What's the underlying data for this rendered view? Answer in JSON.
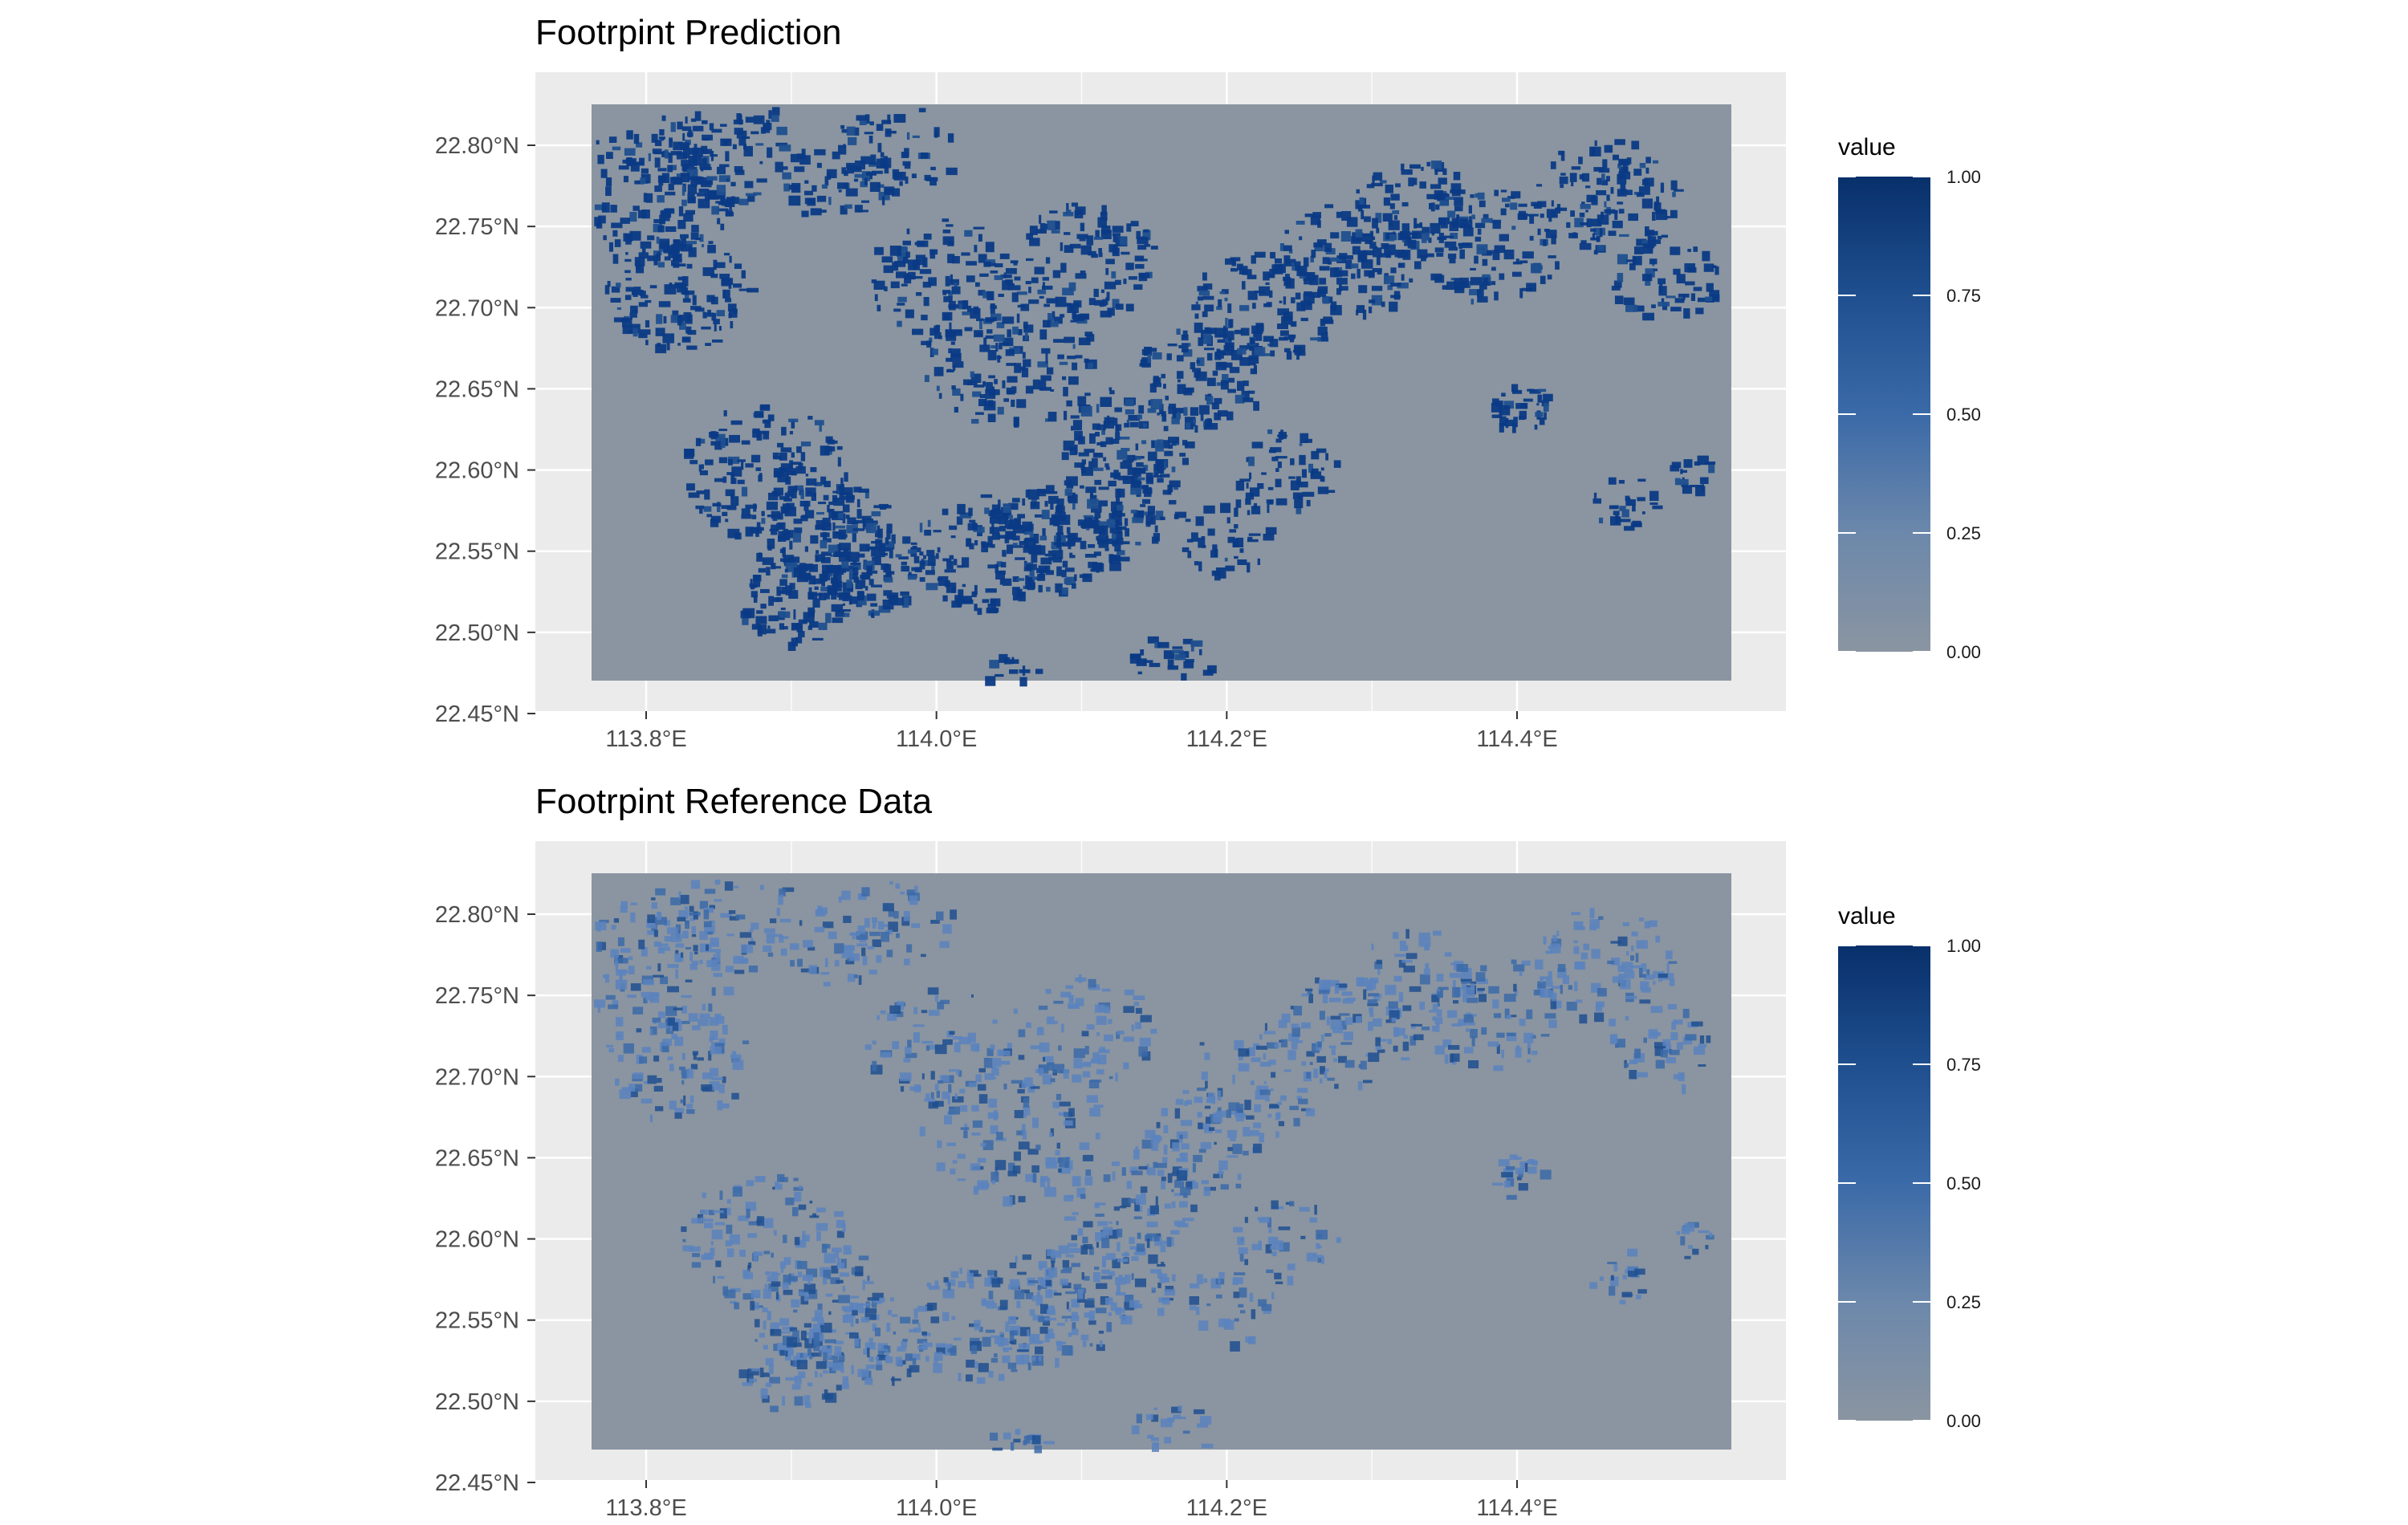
{
  "colors": {
    "panel_bg": "#ebebeb",
    "grid": "#ffffff",
    "raster_bg": "#8a95a1",
    "high": "#08306b",
    "mid": "#3b6aa8",
    "low": "#8a95a1",
    "axis_text": "#4d4d4d",
    "title_text": "#000000"
  },
  "chart_data": [
    {
      "type": "heatmap",
      "title": "Footrpint Prediction",
      "x_ticks": [
        "113.8°E",
        "114.0°E",
        "114.2°E",
        "114.4°E"
      ],
      "x_tick_values": [
        113.8,
        114.0,
        114.2,
        114.4
      ],
      "y_ticks": [
        "22.80°N",
        "22.75°N",
        "22.70°N",
        "22.65°N",
        "22.60°N",
        "22.55°N",
        "22.50°N",
        "22.45°N"
      ],
      "y_tick_values": [
        22.8,
        22.75,
        22.7,
        22.65,
        22.6,
        22.55,
        22.5,
        22.45
      ],
      "xlim": [
        113.76,
        114.54
      ],
      "ylim": [
        22.458,
        22.825
      ],
      "legend": {
        "title": "value",
        "labels": [
          "1.00",
          "0.75",
          "0.50",
          "0.25",
          "0.00"
        ],
        "values": [
          1.0,
          0.75,
          0.5,
          0.25,
          0.0
        ]
      },
      "range": [
        0,
        1
      ]
    },
    {
      "type": "heatmap",
      "title": "Footrpint Reference Data",
      "x_ticks": [
        "113.8°E",
        "114.0°E",
        "114.2°E",
        "114.4°E"
      ],
      "x_tick_values": [
        113.8,
        114.0,
        114.2,
        114.4
      ],
      "y_ticks": [
        "22.80°N",
        "22.75°N",
        "22.70°N",
        "22.65°N",
        "22.60°N",
        "22.55°N",
        "22.50°N",
        "22.45°N"
      ],
      "y_tick_values": [
        22.8,
        22.75,
        22.7,
        22.65,
        22.6,
        22.55,
        22.5,
        22.45
      ],
      "xlim": [
        113.76,
        114.54
      ],
      "ylim": [
        22.458,
        22.825
      ],
      "legend": {
        "title": "value",
        "labels": [
          "1.00",
          "0.75",
          "0.50",
          "0.25",
          "0.00"
        ],
        "values": [
          1.0,
          0.75,
          0.5,
          0.25,
          0.0
        ]
      },
      "range": [
        0,
        1
      ]
    }
  ]
}
